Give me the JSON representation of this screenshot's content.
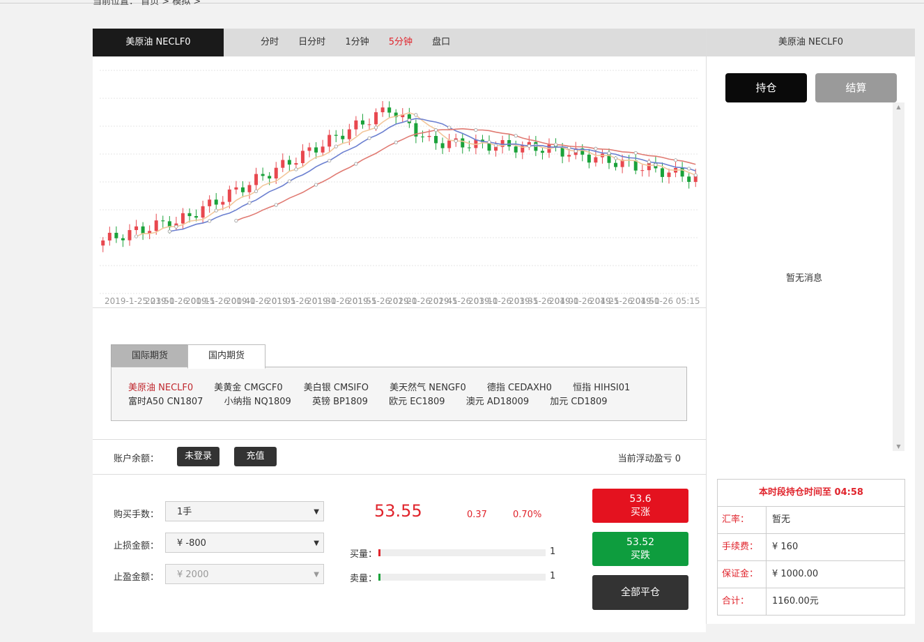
{
  "breadcrumb": "当前位置： 首页 > 模拟 >",
  "chart_header": {
    "name": "美原油 NECLF0",
    "tabs": [
      "分时",
      "日分时",
      "1分钟",
      "5分钟",
      "盘口"
    ],
    "active_tab": "5分钟"
  },
  "chart_data": {
    "type": "candlestick",
    "x_labels": [
      "2019-1-25 23:50",
      "2019-1-26 00:15",
      "2019-1-26 00:40",
      "2019-1-26 01:05",
      "2019-1-26 01:30",
      "2019-1-26 01:55",
      "2019-1-26 02:20",
      "2019-1-26 02:45",
      "2019-1-26 03:10",
      "2019-1-26 03:35",
      "2019-1-26 04:00",
      "2019-1-26 04:25",
      "2019-1-26 04:50",
      "2019-1-26 05:15"
    ],
    "colors": {
      "up": "#e8484f",
      "down": "#1aa23a",
      "ma1": "#f2c69a",
      "ma2": "#6b7fd0",
      "ma3": "#e07a72"
    }
  },
  "futures": {
    "tabs": [
      "国际期货",
      "国内期货"
    ],
    "row1": [
      "美原油 NECLF0",
      "美黄金 CMGCF0",
      "美白银 CMSIFO",
      "美天然气 NENGF0",
      "德指 CEDAXH0",
      "恒指 HIHSI01"
    ],
    "row2": [
      "富时A50 CN1807",
      "小纳指 NQ1809",
      "英镑 BP1809",
      "欧元 EC1809",
      "澳元 AD18009",
      "加元 CD1809"
    ],
    "selected": "美原油 NECLF0"
  },
  "account": {
    "label": "账户余额：",
    "login_btn": "未登录",
    "recharge_btn": "充值",
    "float_pl": "当前浮动盈亏 0"
  },
  "order": {
    "qty_label": "购买手数：",
    "qty_value": "1手",
    "stoploss_label": "止损金额：",
    "stoploss_value": "¥ -800",
    "takeprofit_label": "止盈金额：",
    "takeprofit_value": "¥ 2000",
    "price": "53.55",
    "change": "0.37",
    "change_pct": "0.70%",
    "buy_vol_label": "买量：",
    "buy_vol": "1",
    "sell_vol_label": "卖量：",
    "sell_vol": "1",
    "buy_up_price": "53.6",
    "buy_up_label": "买涨",
    "buy_down_price": "53.52",
    "buy_down_label": "买跌",
    "close_all": "全部平仓"
  },
  "right": {
    "title": "美原油 NECLF0",
    "hold_btn": "持仓",
    "settle_btn": "结算",
    "no_msg": "暂无消息",
    "hold_time": "本时段持仓时间至 04:58",
    "rows": [
      {
        "k": "汇率：",
        "v": "暂无"
      },
      {
        "k": "手续费：",
        "v": "¥ 160"
      },
      {
        "k": "保证金：",
        "v": "¥ 1000.00"
      },
      {
        "k": "合计：",
        "v": "1160.00元"
      }
    ]
  }
}
